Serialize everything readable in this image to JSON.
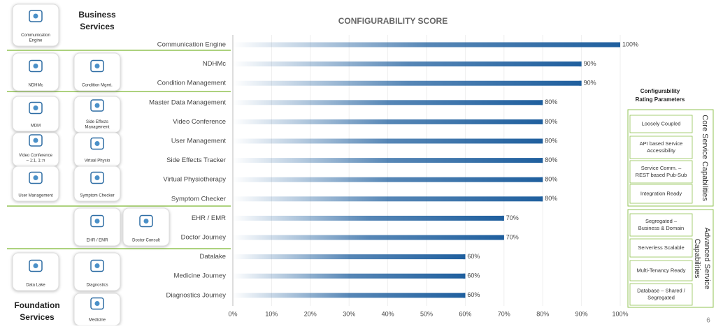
{
  "chart_data": {
    "type": "bar",
    "orientation": "horizontal",
    "title": "CONFIGURABILITY SCORE",
    "categories": [
      "Communication Engine",
      "NDHMc",
      "Condition Management",
      "Master Data Management",
      "Video Conference",
      "User Management",
      "Side Effects Tracker",
      "Virtual Physiotherapy",
      "Symptom Checker",
      "EHR / EMR",
      "Doctor Journey",
      "Datalake",
      "Medicine Journey",
      "Diagnostics Journey"
    ],
    "values": [
      100,
      90,
      90,
      80,
      80,
      80,
      80,
      80,
      80,
      70,
      70,
      60,
      60,
      60
    ],
    "value_labels": [
      "100%",
      "90%",
      "90%",
      "80%",
      "80%",
      "80%",
      "80%",
      "80%",
      "80%",
      "70%",
      "70%",
      "60%",
      "60%",
      "60%"
    ],
    "color": "#1f5f9e",
    "xlim": [
      0,
      100
    ],
    "xticks": [
      {
        "value": 0,
        "label": "0%"
      },
      {
        "value": 10,
        "label": "10%"
      },
      {
        "value": 20,
        "label": "20%"
      },
      {
        "value": 30,
        "label": "30%"
      },
      {
        "value": 40,
        "label": "40%"
      },
      {
        "value": 50,
        "label": "50%"
      },
      {
        "value": 60,
        "label": "60%"
      },
      {
        "value": 70,
        "label": "70%"
      },
      {
        "value": 80,
        "label": "80%"
      },
      {
        "value": 90,
        "label": "90%"
      },
      {
        "value": 100,
        "label": "100%"
      }
    ],
    "grid": true
  },
  "services": {
    "business_title": [
      "Business",
      "Services"
    ],
    "foundation_title": [
      "Foundation",
      "Services"
    ],
    "tiles": [
      {
        "label": [
          "Communication",
          "Engine"
        ]
      },
      {
        "label": [
          "NDHMc"
        ]
      },
      {
        "label": [
          "Condition Mgmt."
        ]
      },
      {
        "label": [
          "MDM"
        ]
      },
      {
        "label": [
          "Side Effects",
          "Management"
        ]
      },
      {
        "label": [
          "Video Conference",
          "– 1:1, 1::n"
        ]
      },
      {
        "label": [
          "Virtual Physio"
        ]
      },
      {
        "label": [
          "User Management"
        ]
      },
      {
        "label": [
          "Symptom Checker"
        ]
      },
      {
        "label": [
          "EHR / EMR"
        ]
      },
      {
        "label": [
          "Doctor Consult"
        ]
      },
      {
        "label": [
          "Data Lake"
        ]
      },
      {
        "label": [
          "Diagnostics"
        ]
      },
      {
        "label": [
          "Medicine"
        ]
      }
    ]
  },
  "parameters": {
    "title": [
      "Configurability",
      "Rating Parameters"
    ],
    "groups": [
      {
        "name": [
          "Core Service Capabilities"
        ],
        "items": [
          [
            "Loosely Coupled"
          ],
          [
            "API based Service",
            "Accessibility"
          ],
          [
            "Service Comm. –",
            "REST based Pub-Sub"
          ],
          [
            "Integration Ready"
          ]
        ]
      },
      {
        "name": [
          "Advanced Service",
          "Capabilities"
        ],
        "items": [
          [
            "Segregated –",
            "Business & Domain"
          ],
          [
            "Serverless Scalable"
          ],
          [
            "Multi-Tenancy Ready"
          ],
          [
            "Database – Shared /",
            "Segregated"
          ]
        ]
      }
    ]
  },
  "page_number": "6"
}
